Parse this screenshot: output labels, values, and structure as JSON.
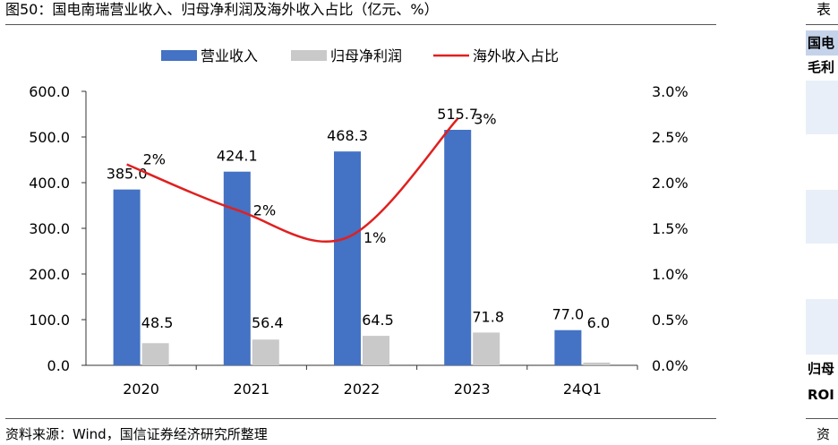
{
  "figure": {
    "title": "图50：国电南瑞营业收入、归母净利润及海外收入占比（亿元、%）",
    "source": "资料来源：Wind，国信证券经济研究所整理"
  },
  "side_panel": {
    "title": "表",
    "header": "国电",
    "row1": "毛利",
    "row2": "归母",
    "row3": "ROI",
    "source": "资"
  },
  "chart_data": {
    "type": "bar",
    "categories": [
      "2020",
      "2021",
      "2022",
      "2023",
      "24Q1"
    ],
    "series": [
      {
        "name": "营业收入",
        "type": "bar",
        "axis": "left",
        "color": "#4472c4",
        "values": [
          385.0,
          424.1,
          468.3,
          515.7,
          77.0
        ],
        "labels": [
          "385.0",
          "424.1",
          "468.3",
          "515.7",
          "77.0"
        ]
      },
      {
        "name": "归母净利润",
        "type": "bar",
        "axis": "left",
        "color": "#c9c9c9",
        "values": [
          48.5,
          56.4,
          64.5,
          71.8,
          6.0
        ],
        "labels": [
          "48.5",
          "56.4",
          "64.5",
          "71.8",
          "6.0"
        ]
      },
      {
        "name": "海外收入占比",
        "type": "line",
        "axis": "right",
        "color": "#e0201f",
        "values": [
          2.2,
          1.7,
          1.4,
          2.7,
          null
        ],
        "labels": [
          "2%",
          "2%",
          "1%",
          "3%",
          null
        ]
      }
    ],
    "ylim_left": [
      0,
      600
    ],
    "yticks_left": [
      "0.0",
      "100.0",
      "200.0",
      "300.0",
      "400.0",
      "500.0",
      "600.0"
    ],
    "ylim_right": [
      0,
      3.0
    ],
    "yticks_right": [
      "0.0%",
      "0.5%",
      "1.0%",
      "1.5%",
      "2.0%",
      "2.5%",
      "3.0%"
    ],
    "legend_position": "top-center",
    "grid": false
  }
}
